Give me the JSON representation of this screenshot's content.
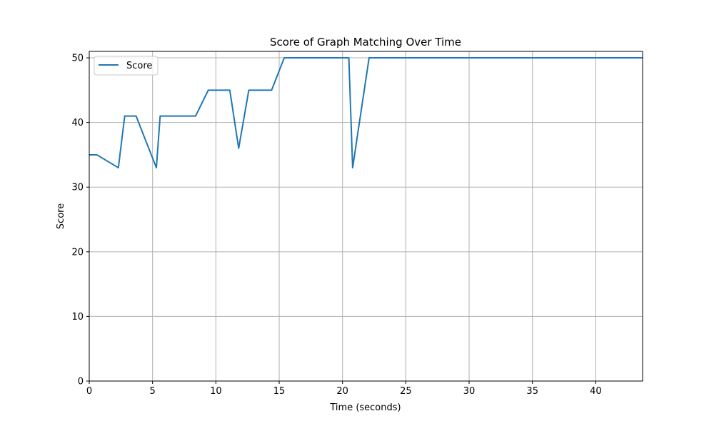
{
  "chart_data": {
    "type": "line",
    "title": "Score of Graph Matching Over Time",
    "xlabel": "Time (seconds)",
    "ylabel": "Score",
    "xlim": [
      0,
      43.7
    ],
    "ylim": [
      0,
      51
    ],
    "xticks": [
      0,
      5,
      10,
      15,
      20,
      25,
      30,
      35,
      40
    ],
    "yticks": [
      0,
      10,
      20,
      30,
      40,
      50
    ],
    "grid": true,
    "legend_position": "upper-left",
    "series": [
      {
        "name": "Score",
        "color": "#1f77b4",
        "x": [
          0,
          0.6,
          2.3,
          2.8,
          3.7,
          5.3,
          5.6,
          8.4,
          9.4,
          11.1,
          11.8,
          12.6,
          14.4,
          15.4,
          20.5,
          20.8,
          22.1,
          43.7
        ],
        "y": [
          35,
          35,
          33,
          41,
          41,
          33,
          41,
          41,
          45,
          45,
          36,
          45,
          45,
          50,
          50,
          33,
          50,
          50
        ]
      }
    ]
  }
}
